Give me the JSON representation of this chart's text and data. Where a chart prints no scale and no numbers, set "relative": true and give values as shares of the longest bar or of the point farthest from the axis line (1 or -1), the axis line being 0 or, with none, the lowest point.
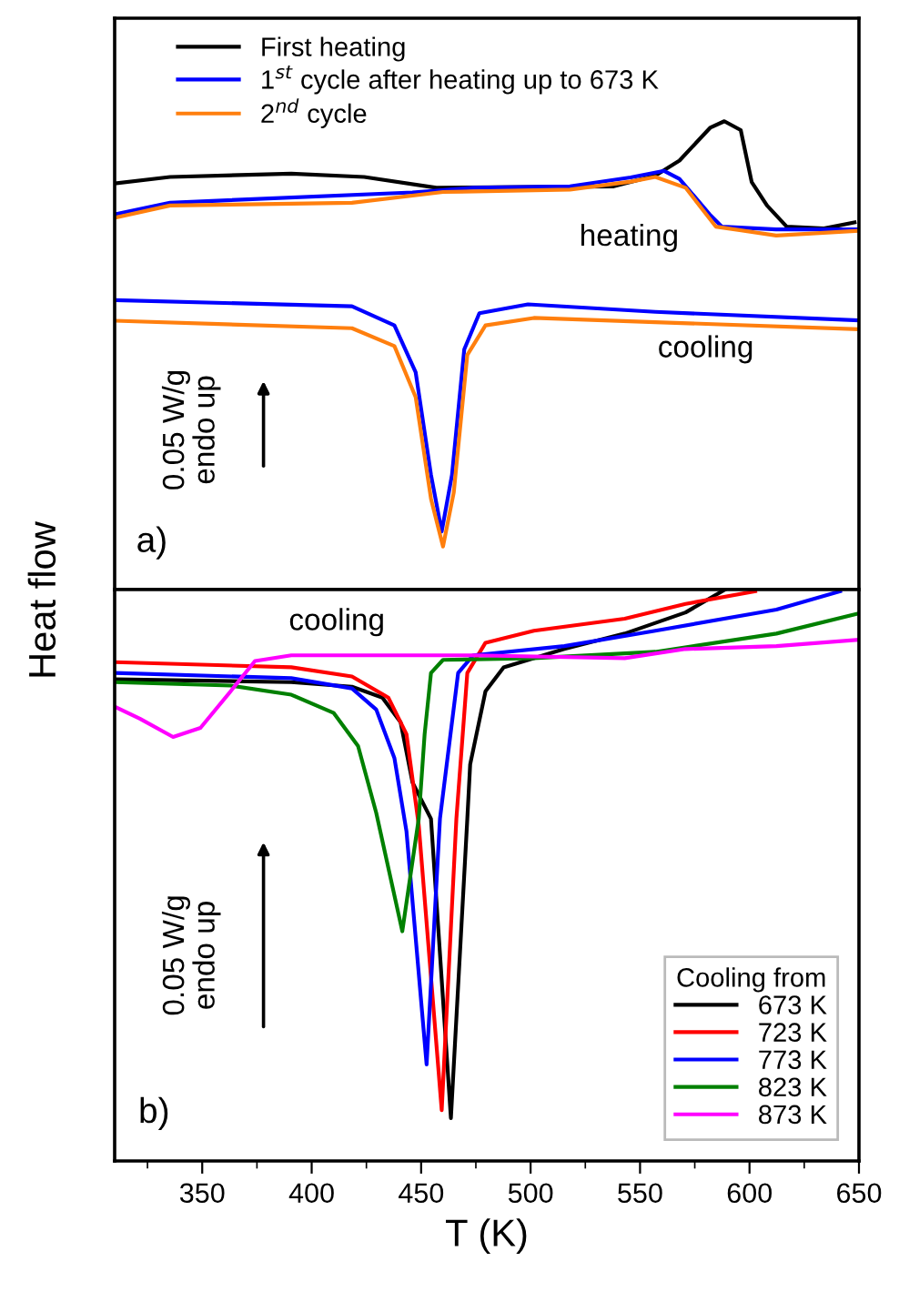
{
  "chart_data": [
    {
      "type": "line",
      "relative": true,
      "ylabel": "Heat flow",
      "xlim": [
        310,
        650
      ],
      "xticks": [
        {
          "value": 325,
          "label": null
        },
        {
          "value": 350,
          "label": null
        },
        {
          "value": 375,
          "label": null
        },
        {
          "value": 400,
          "label": null
        },
        {
          "value": 425,
          "label": null
        },
        {
          "value": 450,
          "label": null
        },
        {
          "value": 475,
          "label": null
        },
        {
          "value": 500,
          "label": null
        },
        {
          "value": 525,
          "label": null
        },
        {
          "value": 550,
          "label": null
        },
        {
          "value": 575,
          "label": null
        },
        {
          "value": 600,
          "label": null
        },
        {
          "value": 625,
          "label": null
        },
        {
          "value": 650,
          "label": null
        }
      ],
      "tick_labels": false,
      "legend": "top left",
      "grid": false,
      "line_style": "solid",
      "annotations": [
        "heating",
        "cooling",
        "0.05 W/g\nendo up",
        "a)"
      ],
      "series": [
        {
          "name": "First heating",
          "color": "#000000",
          "x": [
            310,
            335.3,
            390.7,
            424,
            457,
            538,
            557,
            568,
            582,
            588.5,
            596,
            601,
            608,
            617,
            634,
            648
          ],
          "values": [
            0.867,
            0.881,
            0.888,
            0.881,
            0.858,
            0.861,
            0.884,
            0.916,
            0.986,
            1.0,
            0.981,
            0.87,
            0.82,
            0.775,
            0.771,
            0.784
          ]
        },
        {
          "name": "1$^{st}$ cycle after heating up to 673 K",
          "color": "#0000ff",
          "x": [
            310,
            335.3,
            446,
            473.7,
            518,
            545.7,
            561,
            568,
            581.8,
            587.3,
            612.2,
            649.6
          ],
          "values": [
            0.801,
            0.826,
            0.848,
            0.858,
            0.861,
            0.88,
            0.894,
            0.877,
            0.801,
            0.775,
            0.769,
            0.769
          ]
        },
        {
          "name": "2$^{nd}$ cycle",
          "color": "#ff7f0e",
          "x": [
            310,
            335.3,
            418.4,
            460,
            518,
            545.7,
            557,
            570.8,
            584.6,
            612.2,
            649.6
          ],
          "values": [
            0.794,
            0.82,
            0.826,
            0.849,
            0.854,
            0.871,
            0.881,
            0.858,
            0.775,
            0.756,
            0.766
          ]
        },
        {
          "color": "#0000ff",
          "x": [
            310,
            418.4,
            437.8,
            447.5,
            454.5,
            459.4,
            464.1,
            469.7,
            476.6,
            498.8,
            557,
            649.6
          ],
          "values": [
            0.618,
            0.605,
            0.564,
            0.464,
            0.245,
            0.124,
            0.245,
            0.513,
            0.59,
            0.609,
            0.593,
            0.575
          ]
        },
        {
          "color": "#ff7f0e",
          "x": [
            310,
            418.4,
            437.8,
            447.5,
            454.5,
            460,
            464.9,
            471.1,
            479.4,
            501.5,
            557,
            649.6
          ],
          "values": [
            0.574,
            0.558,
            0.52,
            0.411,
            0.194,
            0.092,
            0.207,
            0.501,
            0.564,
            0.58,
            0.571,
            0.556
          ]
        }
      ]
    },
    {
      "type": "line",
      "relative": true,
      "xlabel": "T (K)",
      "xlim": [
        310,
        650
      ],
      "xticks": [
        {
          "value": 325,
          "label": null
        },
        350,
        {
          "value": 375,
          "label": null
        },
        400,
        {
          "value": 425,
          "label": null
        },
        450,
        {
          "value": 475,
          "label": null
        },
        500,
        {
          "value": 525,
          "label": null
        },
        550,
        {
          "value": 575,
          "label": null
        },
        600,
        {
          "value": 625,
          "label": null
        },
        650
      ],
      "tick_labels": "x",
      "legend": "bottom right",
      "legend_title": "Cooling from",
      "grid": false,
      "line_style": "solid",
      "annotations": [
        "cooling",
        "0.05 W/g\nendo up",
        "b)"
      ],
      "series": [
        {
          "name": "673 K",
          "color": "#000000",
          "x": [
            310,
            390.7,
            418.4,
            432.3,
            440.6,
            446.1,
            454.5,
            463.6,
            471.1,
            472.4,
            479.4,
            487.7,
            515.4,
            543,
            570.8,
            588.8
          ],
          "values": [
            0.843,
            0.838,
            0.83,
            0.811,
            0.768,
            0.662,
            0.599,
            0.075,
            0.599,
            0.694,
            0.822,
            0.864,
            0.896,
            0.923,
            0.96,
            1.0
          ]
        },
        {
          "name": "723 K",
          "color": "#ff0000",
          "x": [
            310,
            390.7,
            418.4,
            435,
            443.3,
            448.9,
            459.4,
            466.1,
            471.1,
            479.4,
            501.5,
            543,
            570.8,
            602.6
          ],
          "values": [
            0.873,
            0.864,
            0.848,
            0.811,
            0.747,
            0.588,
            0.089,
            0.599,
            0.854,
            0.907,
            0.928,
            0.949,
            0.975,
            0.997
          ]
        },
        {
          "name": "773 K",
          "color": "#0000ff",
          "x": [
            310,
            390.7,
            418.4,
            429.5,
            437.8,
            443.3,
            452.5,
            458.6,
            466.9,
            473.8,
            515.4,
            557,
            612.3,
            641.4
          ],
          "values": [
            0.854,
            0.845,
            0.827,
            0.79,
            0.705,
            0.577,
            0.169,
            0.599,
            0.854,
            0.885,
            0.901,
            0.928,
            0.965,
            0.997
          ]
        },
        {
          "name": "823 K",
          "color": "#008000",
          "x": [
            310,
            363,
            390.7,
            410.1,
            421.2,
            429.5,
            441.4,
            448.9,
            451.6,
            454.5,
            460,
            501.5,
            557,
            612.3,
            649.6
          ],
          "values": [
            0.838,
            0.832,
            0.816,
            0.784,
            0.726,
            0.609,
            0.402,
            0.599,
            0.747,
            0.854,
            0.877,
            0.88,
            0.891,
            0.923,
            0.958
          ]
        },
        {
          "name": "873 K",
          "color": "#ff00ff",
          "x": [
            310,
            321.5,
            336.7,
            349.2,
            363,
            374.1,
            390.7,
            473.7,
            543,
            570.8,
            612.3,
            649.6
          ],
          "values": [
            0.795,
            0.774,
            0.742,
            0.758,
            0.822,
            0.875,
            0.885,
            0.885,
            0.88,
            0.896,
            0.901,
            0.912
          ]
        }
      ]
    }
  ]
}
